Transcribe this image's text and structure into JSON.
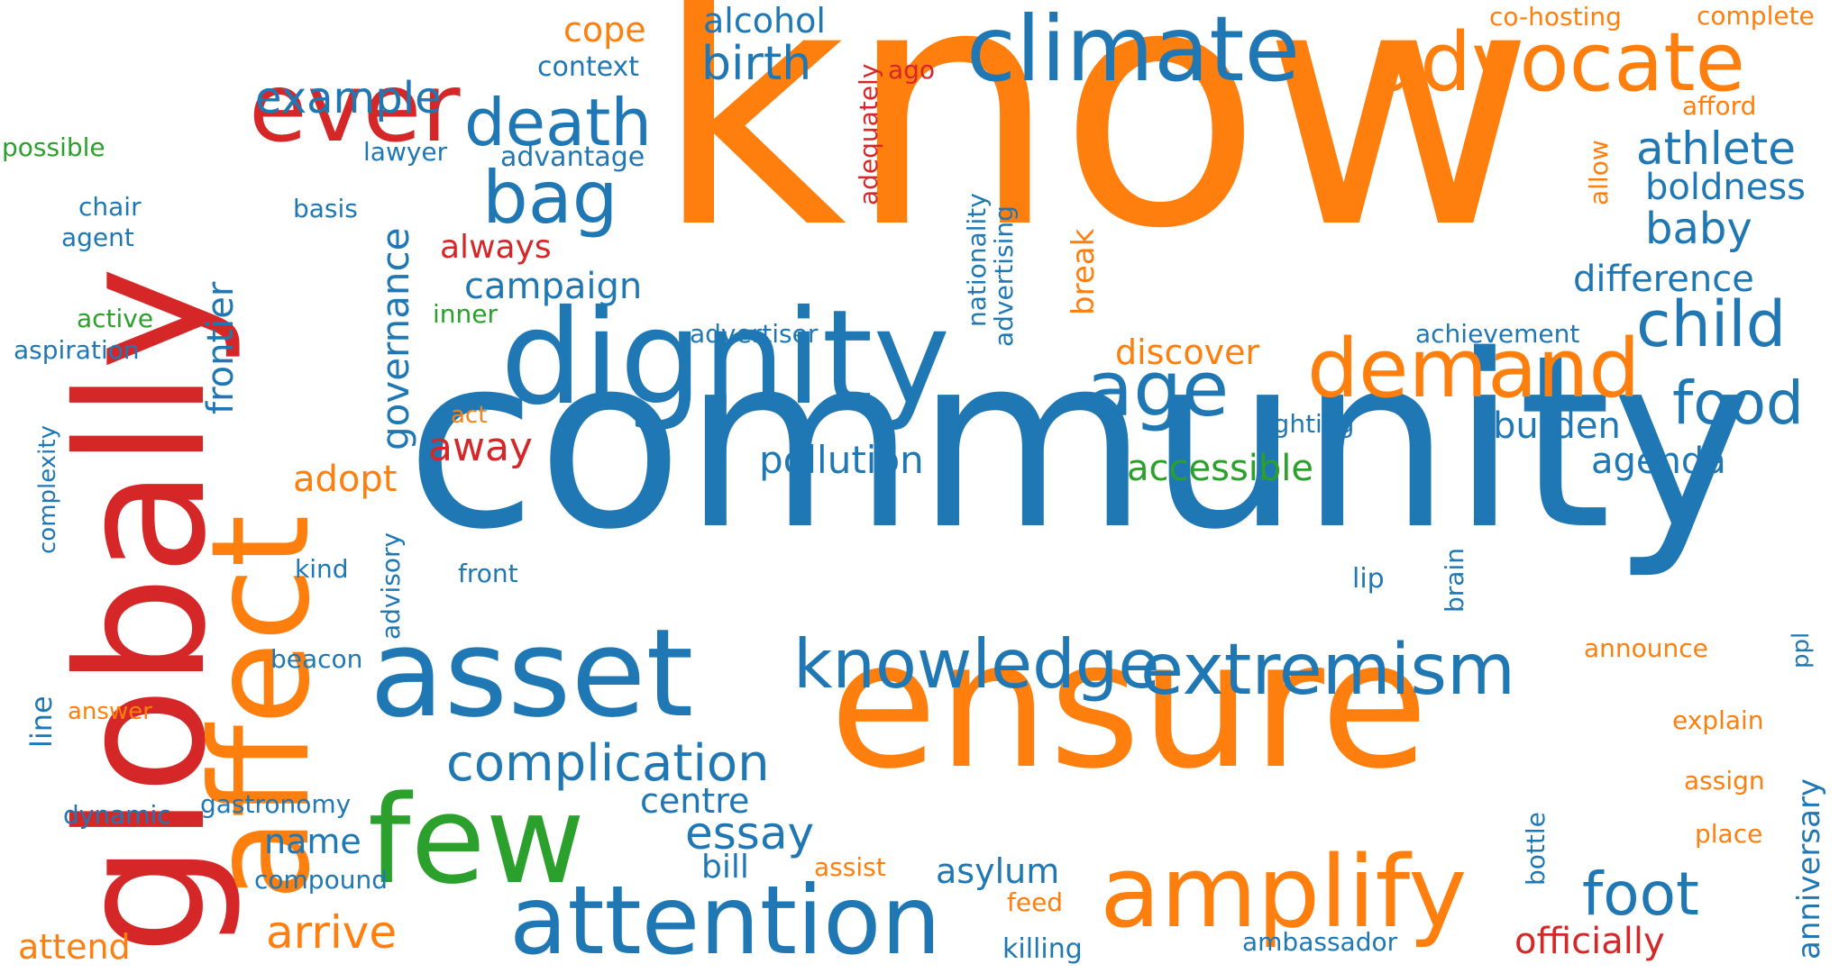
{
  "colors": {
    "blue": "#1f77b4",
    "orange": "#ff7f0e",
    "red": "#d62728",
    "green": "#2ca02c"
  },
  "words": [
    {
      "text": "know",
      "color": "orange"
    },
    {
      "text": "community",
      "color": "blue"
    },
    {
      "text": "ensure",
      "color": "orange"
    },
    {
      "text": "globally",
      "color": "red"
    },
    {
      "text": "affect",
      "color": "orange"
    },
    {
      "text": "dignity",
      "color": "blue"
    },
    {
      "text": "asset",
      "color": "blue"
    },
    {
      "text": "few",
      "color": "green"
    },
    {
      "text": "amplify",
      "color": "orange"
    },
    {
      "text": "attention",
      "color": "blue"
    },
    {
      "text": "ever",
      "color": "red"
    },
    {
      "text": "climate",
      "color": "blue"
    },
    {
      "text": "advocate",
      "color": "orange"
    },
    {
      "text": "demand",
      "color": "orange"
    },
    {
      "text": "extremism",
      "color": "blue"
    },
    {
      "text": "knowledge",
      "color": "blue"
    },
    {
      "text": "age",
      "color": "blue"
    },
    {
      "text": "death",
      "color": "blue"
    },
    {
      "text": "bag",
      "color": "blue"
    },
    {
      "text": "child",
      "color": "blue"
    },
    {
      "text": "food",
      "color": "blue"
    },
    {
      "text": "foot",
      "color": "blue"
    },
    {
      "text": "complication",
      "color": "blue"
    },
    {
      "text": "athlete",
      "color": "blue"
    },
    {
      "text": "birth",
      "color": "blue"
    },
    {
      "text": "example",
      "color": "blue"
    },
    {
      "text": "baby",
      "color": "blue"
    },
    {
      "text": "arrive",
      "color": "orange"
    },
    {
      "text": "essay",
      "color": "blue"
    },
    {
      "text": "pollution",
      "color": "blue"
    },
    {
      "text": "campaign",
      "color": "blue"
    },
    {
      "text": "difference",
      "color": "blue"
    },
    {
      "text": "boldness",
      "color": "blue"
    },
    {
      "text": "agenda",
      "color": "blue"
    },
    {
      "text": "burden",
      "color": "blue"
    },
    {
      "text": "discover",
      "color": "orange"
    },
    {
      "text": "accessible",
      "color": "green"
    },
    {
      "text": "governance",
      "color": "blue"
    },
    {
      "text": "frontier",
      "color": "blue"
    },
    {
      "text": "away",
      "color": "red"
    },
    {
      "text": "adopt",
      "color": "orange"
    },
    {
      "text": "alcohol",
      "color": "blue"
    },
    {
      "text": "cope",
      "color": "orange"
    },
    {
      "text": "always",
      "color": "red"
    },
    {
      "text": "officially",
      "color": "red"
    },
    {
      "text": "asylum",
      "color": "blue"
    },
    {
      "text": "centre",
      "color": "blue"
    },
    {
      "text": "name",
      "color": "blue"
    },
    {
      "text": "bill",
      "color": "blue"
    },
    {
      "text": "attend",
      "color": "orange"
    },
    {
      "text": "anniversary",
      "color": "blue"
    },
    {
      "text": "break",
      "color": "orange"
    },
    {
      "text": "context",
      "color": "blue"
    },
    {
      "text": "advantage",
      "color": "blue"
    },
    {
      "text": "lawyer",
      "color": "blue"
    },
    {
      "text": "basis",
      "color": "blue"
    },
    {
      "text": "chair",
      "color": "blue"
    },
    {
      "text": "agent",
      "color": "blue"
    },
    {
      "text": "possible",
      "color": "green"
    },
    {
      "text": "active",
      "color": "green"
    },
    {
      "text": "inner",
      "color": "green"
    },
    {
      "text": "aspiration",
      "color": "blue"
    },
    {
      "text": "complexity",
      "color": "blue"
    },
    {
      "text": "kind",
      "color": "blue"
    },
    {
      "text": "front",
      "color": "blue"
    },
    {
      "text": "advisory",
      "color": "blue"
    },
    {
      "text": "beacon",
      "color": "blue"
    },
    {
      "text": "line",
      "color": "blue"
    },
    {
      "text": "answer",
      "color": "orange"
    },
    {
      "text": "dynamic",
      "color": "blue"
    },
    {
      "text": "gastronomy",
      "color": "blue"
    },
    {
      "text": "compound",
      "color": "blue"
    },
    {
      "text": "act",
      "color": "orange"
    },
    {
      "text": "advertiser",
      "color": "blue"
    },
    {
      "text": "achievement",
      "color": "blue"
    },
    {
      "text": "lighting",
      "color": "blue"
    },
    {
      "text": "lip",
      "color": "blue"
    },
    {
      "text": "brain",
      "color": "blue"
    },
    {
      "text": "announce",
      "color": "orange"
    },
    {
      "text": "ppl",
      "color": "blue"
    },
    {
      "text": "explain",
      "color": "orange"
    },
    {
      "text": "assign",
      "color": "orange"
    },
    {
      "text": "place",
      "color": "orange"
    },
    {
      "text": "bottle",
      "color": "blue"
    },
    {
      "text": "assist",
      "color": "orange"
    },
    {
      "text": "feed",
      "color": "orange"
    },
    {
      "text": "killing",
      "color": "blue"
    },
    {
      "text": "ambassador",
      "color": "blue"
    },
    {
      "text": "co-hosting",
      "color": "orange"
    },
    {
      "text": "complete",
      "color": "orange"
    },
    {
      "text": "afford",
      "color": "orange"
    },
    {
      "text": "allow",
      "color": "orange"
    },
    {
      "text": "ago",
      "color": "red"
    },
    {
      "text": "adequately",
      "color": "red"
    },
    {
      "text": "nationality",
      "color": "blue"
    },
    {
      "text": "advertising",
      "color": "blue"
    }
  ]
}
